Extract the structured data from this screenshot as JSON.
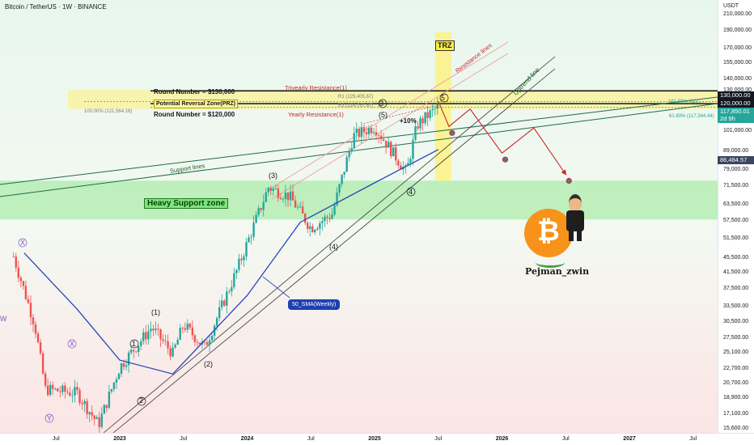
{
  "header": {
    "title": "Bitcoin / TetherUS · 1W · BINANCE"
  },
  "axis": {
    "currency": "USDT"
  },
  "colors": {
    "up": "#26a69a",
    "down": "#ef5350",
    "sma": "#2846b8",
    "resistance": "#ef9a9a",
    "uptrend": "#333333",
    "support": "#1f6b4a",
    "zone_green": "#7ee57e",
    "zone_yellow": "#fff176",
    "arrow": "#c62828"
  },
  "price_ticks": [
    "210,000.00",
    "190,000.00",
    "170,000.00",
    "155,000.00",
    "140,000.00",
    "130,000.00",
    "120,000.00",
    "110,000.00",
    "101,000.00",
    "89,000.00",
    "79,000.00",
    "71,500.00",
    "63,500.00",
    "57,500.00",
    "51,500.00",
    "45,500.00",
    "41,500.00",
    "37,500.00",
    "33,500.00",
    "30,500.00",
    "27,500.00",
    "25,100.00",
    "22,700.00",
    "20,700.00",
    "18,900.00",
    "17,100.00",
    "15,600.00"
  ],
  "price_tags": {
    "r130": "130,000.00",
    "r120": "120,000.00",
    "current": "117,850.01",
    "countdown": "2d 9h",
    "target": "86,484.57"
  },
  "time_ticks": [
    {
      "label": "Jul",
      "year": false
    },
    {
      "label": "2023",
      "year": true
    },
    {
      "label": "Jul",
      "year": false
    },
    {
      "label": "2024",
      "year": true
    },
    {
      "label": "Jul",
      "year": false
    },
    {
      "label": "2025",
      "year": true
    },
    {
      "label": "Jul",
      "year": false
    },
    {
      "label": "2026",
      "year": true
    },
    {
      "label": "Jul",
      "year": false
    },
    {
      "label": "2027",
      "year": true
    },
    {
      "label": "Jul",
      "year": false
    }
  ],
  "annotations": {
    "round_130": "Round Number = $130,000",
    "round_120": "Round Number = $120,000",
    "prz": "Potential Reversal Zone(PRZ)",
    "triyearly": "Triyearly Resistance(1)",
    "yearly": "Yearly Resistance(1)",
    "fib_100": "100.00% (121,564.16)",
    "fib_r1": "R1 (129,405.67)",
    "fib_r3": "R3 (124,767.67)",
    "fib_618": "61.80% (117,344.44)",
    "fib_right": "161.80% (121,...",
    "trz": "TRZ",
    "resistance_lines": "Resistance lines",
    "uptrend_line": "Uptrend line",
    "support_lines": "Support lines",
    "heavy_support": "Heavy Support zone",
    "sma": "50_SMA(Weekly)",
    "pct": "+10%",
    "author": "Pejman_zwin",
    "w1": "(1)",
    "w2": "(2)",
    "w3": "(3)",
    "w4": "(4)",
    "w5": "(5)",
    "c1": "1",
    "c2": "2",
    "c3": "3",
    "c4": "4",
    "c5": "5",
    "x": "X",
    "y": "Y",
    "w": "W"
  },
  "chart_data": {
    "type": "candlestick",
    "title": "Bitcoin / TetherUS · 1W · BINANCE",
    "scale": "log",
    "ylim": [
      15200,
      230000
    ],
    "x_range": [
      "2022-04",
      "2027-10"
    ],
    "key_points": [
      {
        "t": "2022-03",
        "close": 46000
      },
      {
        "t": "2022-05",
        "close": 30000
      },
      {
        "t": "2022-06",
        "close": 20000
      },
      {
        "t": "2022-09",
        "close": 19500
      },
      {
        "t": "2022-11",
        "close": 16000
      },
      {
        "t": "2023-01",
        "close": 23000
      },
      {
        "t": "2023-04",
        "close": 29500
      },
      {
        "t": "2023-06",
        "close": 25000
      },
      {
        "t": "2023-07",
        "close": 30000
      },
      {
        "t": "2023-09",
        "close": 26000
      },
      {
        "t": "2023-12",
        "close": 42000
      },
      {
        "t": "2024-03",
        "close": 71000
      },
      {
        "t": "2024-05",
        "close": 67000
      },
      {
        "t": "2024-07",
        "close": 55000
      },
      {
        "t": "2024-09",
        "close": 60000
      },
      {
        "t": "2024-11",
        "close": 98000
      },
      {
        "t": "2025-01",
        "close": 104000
      },
      {
        "t": "2025-04",
        "close": 78000
      },
      {
        "t": "2025-05",
        "close": 105000
      },
      {
        "t": "2025-07",
        "close": 117850
      }
    ],
    "sma_50w": [
      {
        "t": "2022-04",
        "v": 47000
      },
      {
        "t": "2022-09",
        "v": 33000
      },
      {
        "t": "2023-01",
        "v": 24000
      },
      {
        "t": "2023-06",
        "v": 22000
      },
      {
        "t": "2024-01",
        "v": 36000
      },
      {
        "t": "2024-06",
        "v": 57000
      },
      {
        "t": "2025-01",
        "v": 73000
      },
      {
        "t": "2025-07",
        "v": 90000
      }
    ],
    "projection": [
      {
        "t": "2025-07",
        "v": 122000
      },
      {
        "t": "2025-08",
        "v": 104000
      },
      {
        "t": "2025-10",
        "v": 116000
      },
      {
        "t": "2026-01",
        "v": 88000
      },
      {
        "t": "2026-04",
        "v": 103000
      },
      {
        "t": "2026-07",
        "v": 77000
      }
    ],
    "zones": {
      "heavy_support": [
        58000,
        74000
      ],
      "prz": [
        118000,
        124000
      ],
      "round_numbers": [
        120000,
        130000
      ]
    },
    "legend": "none",
    "grid": false
  }
}
